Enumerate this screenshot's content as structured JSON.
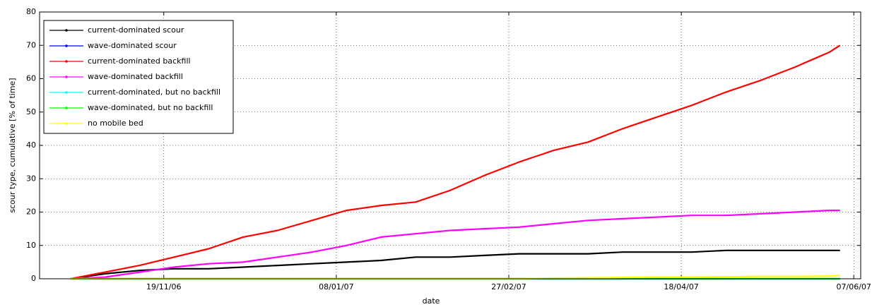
{
  "chart_data": {
    "type": "line",
    "xlabel": "date",
    "ylabel": "scour type, cumulative [% of time]",
    "x": [
      "23/10/06",
      "02/11/06",
      "12/11/06",
      "22/11/06",
      "02/12/06",
      "12/12/06",
      "22/12/06",
      "01/01/07",
      "11/01/07",
      "21/01/07",
      "31/01/07",
      "10/02/07",
      "20/02/07",
      "02/03/07",
      "12/03/07",
      "22/03/07",
      "01/04/07",
      "11/04/07",
      "21/04/07",
      "01/05/07",
      "11/05/07",
      "21/05/07",
      "31/05/07",
      "03/06/07"
    ],
    "xlim": [
      "14/10/06",
      "09/06/07"
    ],
    "xticks": [
      "19/11/06",
      "08/01/07",
      "27/02/07",
      "18/04/07",
      "07/06/07"
    ],
    "ylim": [
      0,
      80
    ],
    "yticks": [
      0,
      10,
      20,
      30,
      40,
      50,
      60,
      70,
      80
    ],
    "grid": true,
    "legend": "upper-left",
    "series": [
      {
        "name": "current-dominated scour",
        "color": "#000000",
        "values": [
          0,
          1.5,
          2.5,
          3,
          3,
          3.5,
          4,
          4.5,
          5,
          5.5,
          6.5,
          6.5,
          7,
          7.5,
          7.5,
          7.5,
          8,
          8,
          8,
          8.5,
          8.5,
          8.5,
          8.5,
          8.5
        ]
      },
      {
        "name": "wave-dominated scour",
        "color": "#0000ff",
        "values": [
          0,
          0,
          0,
          0,
          0,
          0,
          0,
          0,
          0,
          0,
          0,
          0,
          0,
          0,
          0,
          0,
          0,
          0,
          0,
          0,
          0,
          0,
          0,
          0
        ]
      },
      {
        "name": "current-dominated backfill",
        "color": "#ff0000",
        "values": [
          0,
          2,
          4,
          6.5,
          9,
          12.5,
          14.5,
          17.5,
          20.5,
          22,
          23,
          26.5,
          31,
          35,
          38.5,
          41,
          45,
          48.5,
          52,
          56,
          59.5,
          63.5,
          68,
          70
        ]
      },
      {
        "name": "wave-dominated backfill",
        "color": "#ff00ff",
        "values": [
          0,
          0.5,
          2,
          3.5,
          4.5,
          5,
          6.5,
          8,
          10,
          12.5,
          13.5,
          14.5,
          15,
          15.5,
          16.5,
          17.5,
          18,
          18.5,
          19,
          19,
          19.5,
          20,
          20.5,
          20.5
        ]
      },
      {
        "name": "current-dominated, but no backfill",
        "color": "#00ffff",
        "values": [
          0,
          0,
          0,
          0,
          0,
          0,
          0,
          0,
          0,
          0,
          0,
          0,
          0,
          0,
          0,
          0,
          0,
          0,
          0,
          0,
          0,
          0,
          0,
          0
        ]
      },
      {
        "name": "wave-dominated, but no backfill",
        "color": "#00ff00",
        "values": [
          0,
          0,
          0,
          0,
          0,
          0,
          0,
          0,
          0,
          0,
          0,
          0,
          0,
          0,
          0,
          0,
          0,
          0,
          0,
          0,
          0,
          0,
          0,
          0
        ]
      },
      {
        "name": "no mobile bed",
        "color": "#ffff00",
        "values": [
          0,
          0,
          0,
          0,
          0,
          0,
          0,
          0,
          0,
          0,
          0,
          0,
          0,
          0,
          0.2,
          0.3,
          0.4,
          0.5,
          0.5,
          0.6,
          0.7,
          0.7,
          0.8,
          1
        ]
      }
    ]
  }
}
